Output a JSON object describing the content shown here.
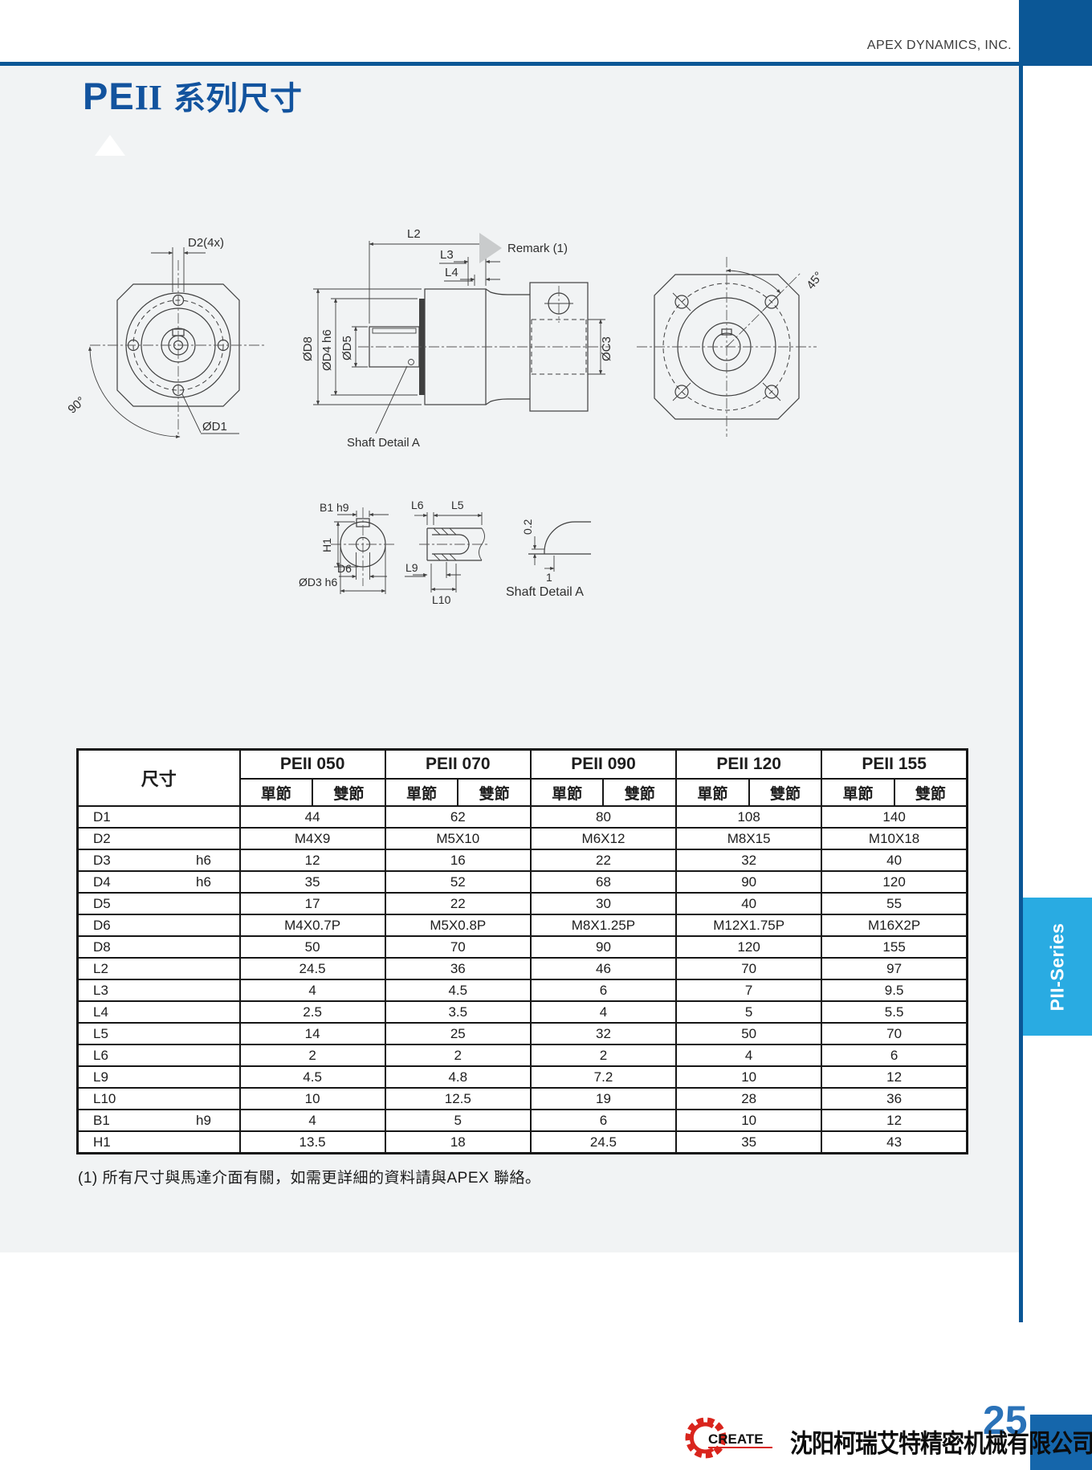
{
  "header": {
    "company": "APEX DYNAMICS, INC.",
    "title_pe": "PE",
    "title_ii": "II",
    "title_suffix": "系列尺寸"
  },
  "side_tab": {
    "label": "PII-Series"
  },
  "drawing": {
    "front": {
      "d2": "D2(4x)",
      "angle": "90°",
      "d1": "ØD1"
    },
    "side": {
      "l2": "L2",
      "l3": "L3",
      "l4": "L4",
      "d8": "ØD8",
      "d4": "ØD4 h6",
      "d5": "ØD5",
      "c3": "ØC3",
      "remark": "Remark (1)",
      "shaft_detail": "Shaft Detail A"
    },
    "rear": {
      "angle": "45°"
    },
    "detail": {
      "b1": "B1 h9",
      "h1": "H1",
      "d6": "D6",
      "d3": "ØD3 h6",
      "l6": "L6",
      "l5": "L5",
      "l9": "L9",
      "l10": "L10",
      "chamfer_v": "0.2",
      "chamfer_h": "1",
      "caption": "Shaft  Detail  A"
    }
  },
  "table": {
    "corner_label": "尺寸",
    "models": [
      "PEII 050",
      "PEII 070",
      "PEII 090",
      "PEII 120",
      "PEII 155"
    ],
    "sub_headers": [
      "單節",
      "雙節"
    ],
    "rows": [
      {
        "label": "D1",
        "tol": "",
        "values": [
          "44",
          "62",
          "80",
          "108",
          "140"
        ]
      },
      {
        "label": "D2",
        "tol": "",
        "values": [
          "M4X9",
          "M5X10",
          "M6X12",
          "M8X15",
          "M10X18"
        ]
      },
      {
        "label": "D3",
        "tol": "h6",
        "values": [
          "12",
          "16",
          "22",
          "32",
          "40"
        ]
      },
      {
        "label": "D4",
        "tol": "h6",
        "values": [
          "35",
          "52",
          "68",
          "90",
          "120"
        ]
      },
      {
        "label": "D5",
        "tol": "",
        "values": [
          "17",
          "22",
          "30",
          "40",
          "55"
        ]
      },
      {
        "label": "D6",
        "tol": "",
        "values": [
          "M4X0.7P",
          "M5X0.8P",
          "M8X1.25P",
          "M12X1.75P",
          "M16X2P"
        ]
      },
      {
        "label": "D8",
        "tol": "",
        "values": [
          "50",
          "70",
          "90",
          "120",
          "155"
        ]
      },
      {
        "label": "L2",
        "tol": "",
        "values": [
          "24.5",
          "36",
          "46",
          "70",
          "97"
        ]
      },
      {
        "label": "L3",
        "tol": "",
        "values": [
          "4",
          "4.5",
          "6",
          "7",
          "9.5"
        ]
      },
      {
        "label": "L4",
        "tol": "",
        "values": [
          "2.5",
          "3.5",
          "4",
          "5",
          "5.5"
        ]
      },
      {
        "label": "L5",
        "tol": "",
        "values": [
          "14",
          "25",
          "32",
          "50",
          "70"
        ]
      },
      {
        "label": "L6",
        "tol": "",
        "values": [
          "2",
          "2",
          "2",
          "4",
          "6"
        ]
      },
      {
        "label": "L9",
        "tol": "",
        "values": [
          "4.5",
          "4.8",
          "7.2",
          "10",
          "12"
        ]
      },
      {
        "label": "L10",
        "tol": "",
        "values": [
          "10",
          "12.5",
          "19",
          "28",
          "36"
        ]
      },
      {
        "label": "B1",
        "tol": "h9",
        "values": [
          "4",
          "5",
          "6",
          "10",
          "12"
        ]
      },
      {
        "label": "H1",
        "tol": "",
        "values": [
          "13.5",
          "18",
          "24.5",
          "35",
          "43"
        ]
      }
    ]
  },
  "footnote": "(1) 所有尺寸與馬達介面有關，如需更詳細的資料請與APEX 聯絡。",
  "footer": {
    "logo_text": "CREATE",
    "company": "沈阳柯瑞艾特精密机械有限公司",
    "page": "25"
  },
  "colors": {
    "accent": "#0b5796",
    "tab_blue": "#29abe2",
    "footer_box": "#1566ab",
    "logo_red": "#d9251d"
  }
}
